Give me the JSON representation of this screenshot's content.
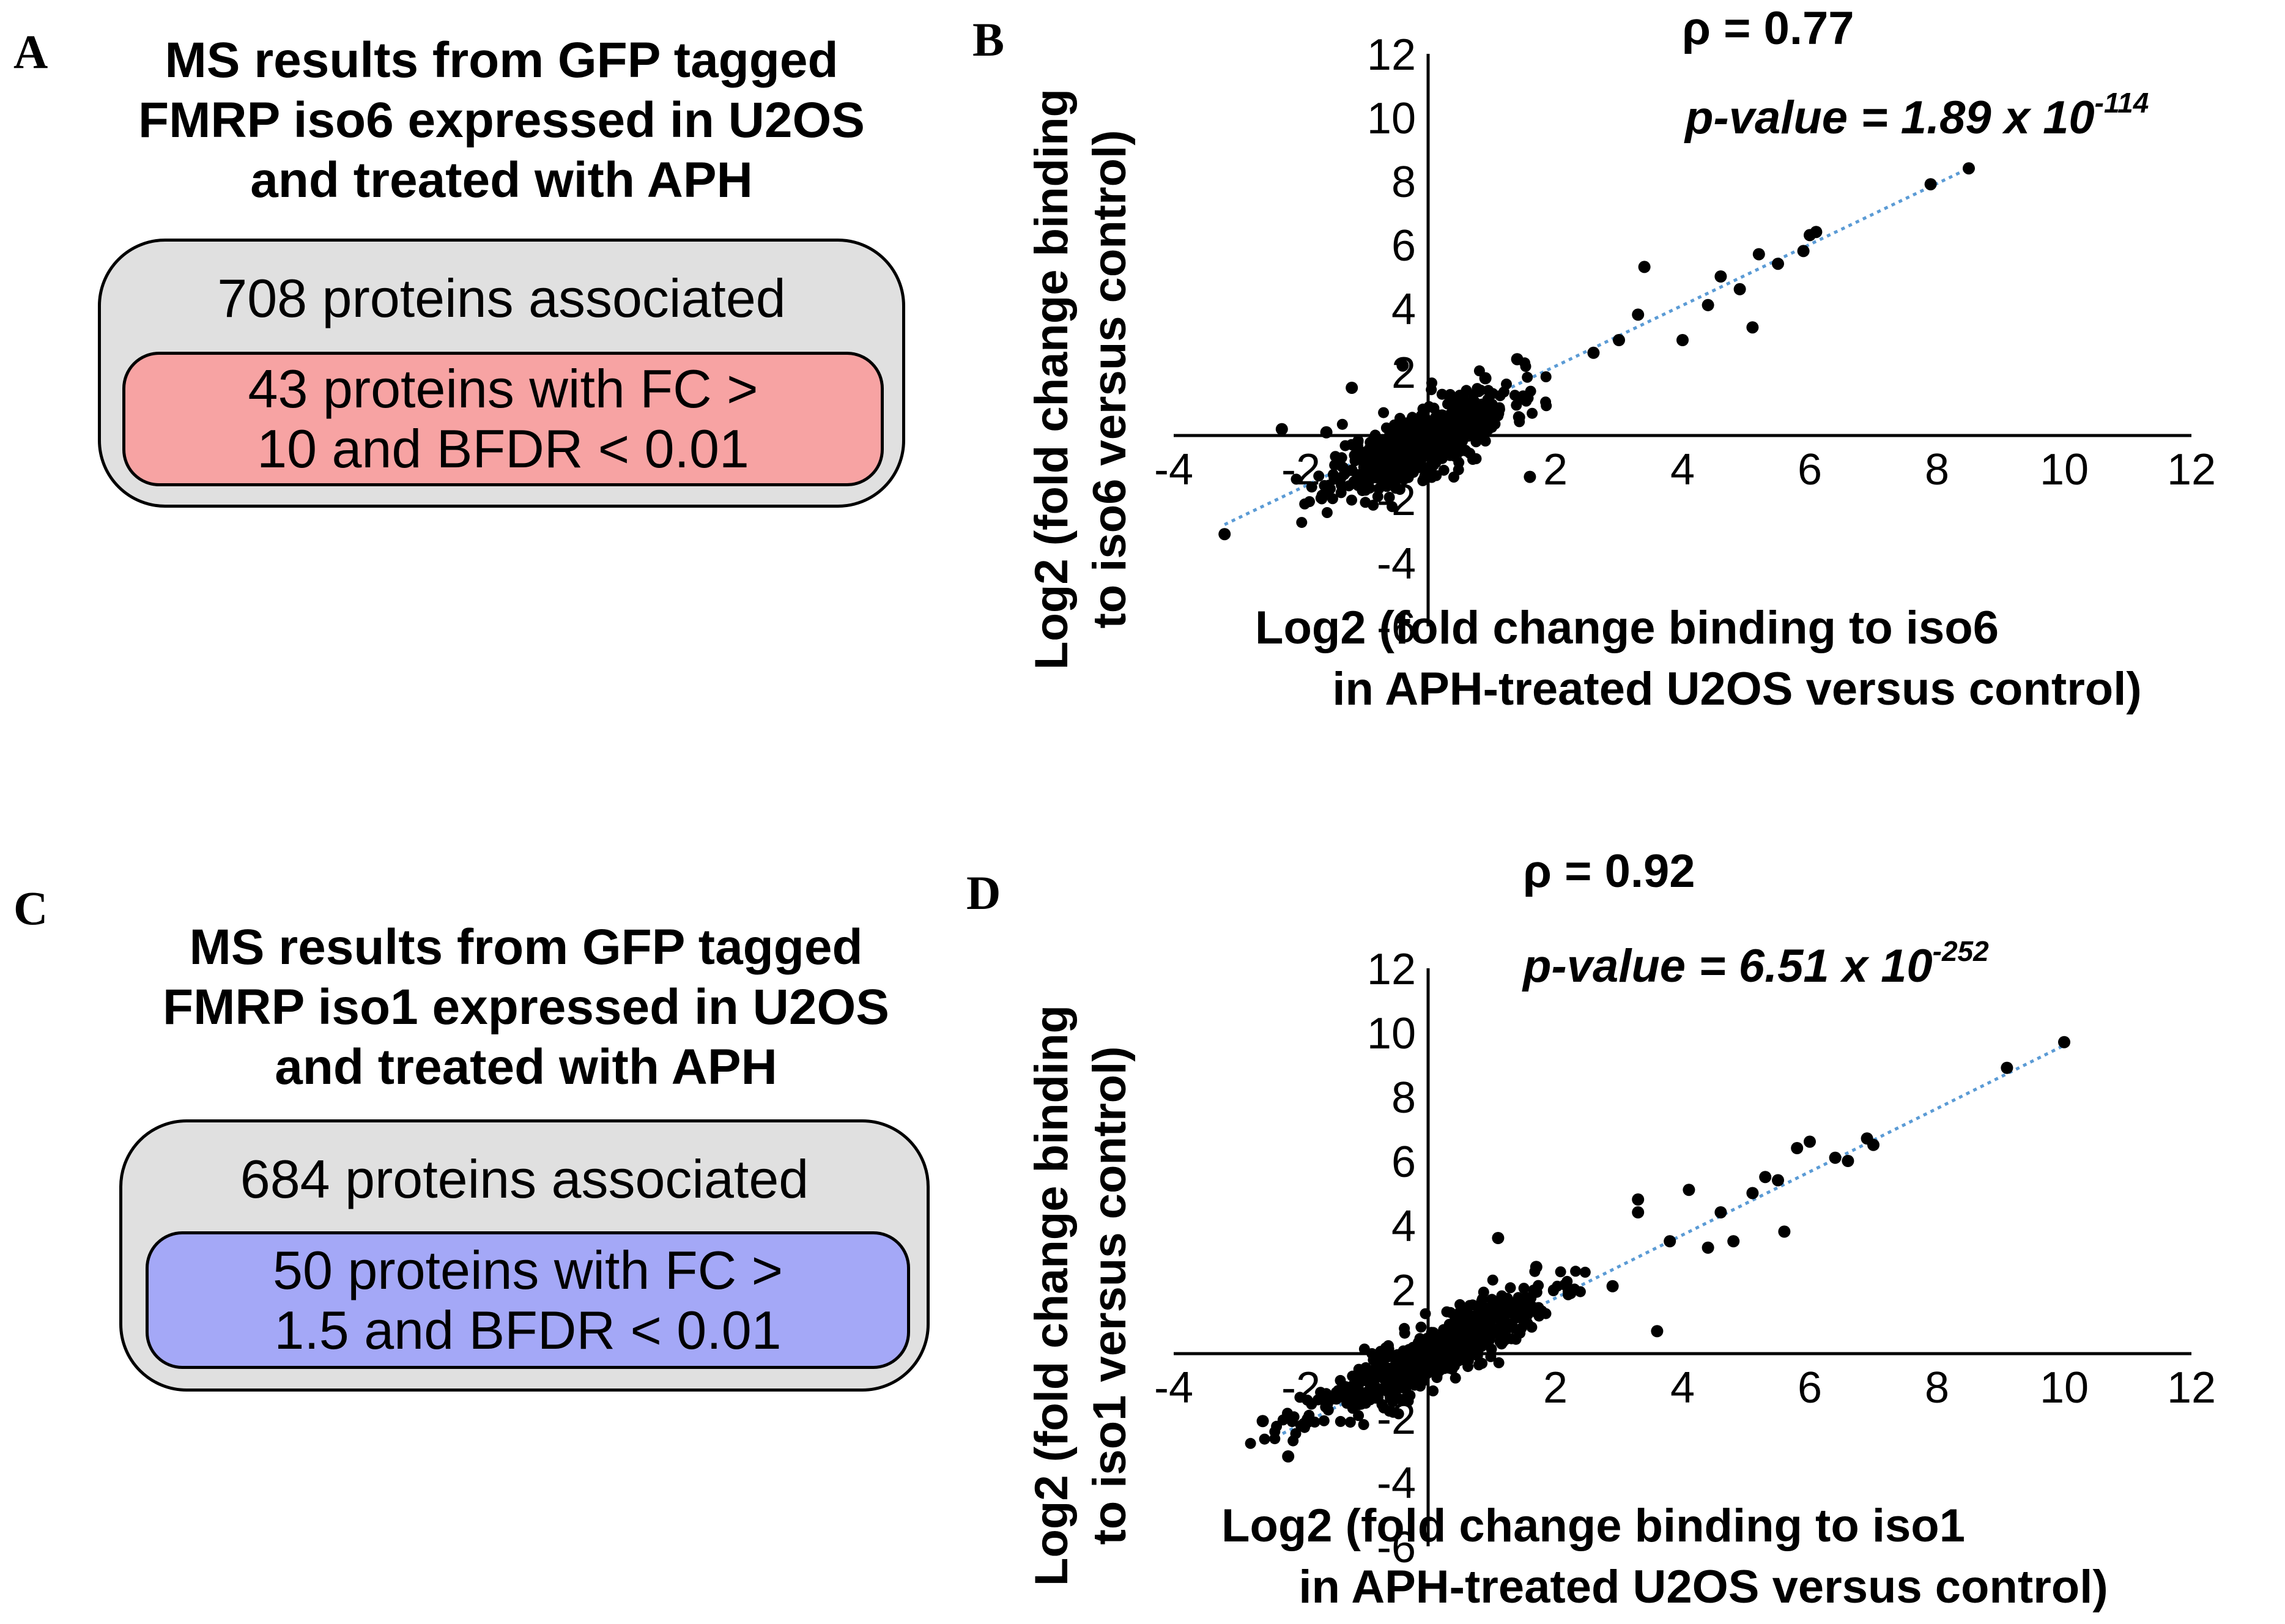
{
  "panels": {
    "a": {
      "letter": "A",
      "title_lines": [
        "MS results from GFP tagged",
        "FMRP iso6 expressed in U2OS",
        "and treated with APH"
      ],
      "outer_label": "708 proteins associated",
      "inner_lines": [
        "43 proteins with FC >",
        "10 and BFDR < 0.01"
      ],
      "inner_color": "#f7a3a3"
    },
    "b": {
      "letter": "B"
    },
    "c": {
      "letter": "C",
      "title_lines": [
        "MS results from GFP tagged",
        "FMRP iso1 expressed in U2OS",
        "and treated with APH"
      ],
      "outer_label": "684 proteins associated",
      "inner_lines": [
        "50 proteins with FC >",
        "1.5 and BFDR < 0.01"
      ],
      "inner_color": "#a4a8f7"
    },
    "d": {
      "letter": "D"
    }
  },
  "chart_data": [
    {
      "panel": "B",
      "type": "scatter",
      "rho_label": "ρ = 0.77",
      "pvalue_prefix": "p-value",
      "pvalue_value": " = 1.89 x 10",
      "pvalue_exp": "-114",
      "xlabel_lines": [
        "Log2 (fold change binding to iso6",
        "in APH-treated U2OS versus control)"
      ],
      "ylabel_lines": [
        "Log2 (fold change binding",
        "to iso6 versus control)"
      ],
      "xlim": [
        -4,
        12
      ],
      "ylim": [
        -6,
        12
      ],
      "x_ticks": [
        "-4",
        "-2",
        "2",
        "4",
        "6",
        "8",
        "10",
        "12"
      ],
      "y_ticks": [
        "12",
        "10",
        "8",
        "6",
        "4",
        "2",
        "-2",
        "-4",
        "-6"
      ],
      "trendline": {
        "x": [
          -3.2,
          8.5
        ],
        "y": [
          -2.8,
          8.4
        ],
        "color": "#5b9bd5"
      },
      "highlight_points": [
        {
          "x": -3.2,
          "y": -3.1
        },
        {
          "x": -2.3,
          "y": 0.2
        },
        {
          "x": -1.6,
          "y": 0.1
        },
        {
          "x": -1.2,
          "y": 1.5
        },
        {
          "x": -0.4,
          "y": 2.2
        },
        {
          "x": 0.9,
          "y": 1.8
        },
        {
          "x": 1.4,
          "y": 2.4
        },
        {
          "x": 1.6,
          "y": -1.3
        },
        {
          "x": 2.6,
          "y": 2.6
        },
        {
          "x": 3.0,
          "y": 3.0
        },
        {
          "x": 3.3,
          "y": 3.8
        },
        {
          "x": 3.4,
          "y": 5.3
        },
        {
          "x": 4.0,
          "y": 3.0
        },
        {
          "x": 4.4,
          "y": 4.1
        },
        {
          "x": 4.6,
          "y": 5.0
        },
        {
          "x": 4.9,
          "y": 4.6
        },
        {
          "x": 5.1,
          "y": 3.4
        },
        {
          "x": 5.2,
          "y": 5.7
        },
        {
          "x": 5.5,
          "y": 5.4
        },
        {
          "x": 5.9,
          "y": 5.8
        },
        {
          "x": 6.0,
          "y": 6.3
        },
        {
          "x": 6.1,
          "y": 6.4
        },
        {
          "x": 7.9,
          "y": 7.9
        },
        {
          "x": 8.5,
          "y": 8.4
        }
      ],
      "cloud": {
        "n": 560,
        "seed": 11,
        "x_mu": -0.1,
        "x_sd": 0.7,
        "noise_sd": 0.55,
        "slope": 0.85,
        "intercept": -0.1,
        "x_min": -3.0,
        "x_max": 3.5
      }
    },
    {
      "panel": "D",
      "type": "scatter",
      "rho_label": "ρ = 0.92",
      "pvalue_prefix": "p-value",
      "pvalue_value": " = 6.51 x 10",
      "pvalue_exp": "-252",
      "xlabel_lines": [
        "Log2 (fold change binding to iso1",
        "in APH-treated U2OS versus control)"
      ],
      "ylabel_lines": [
        "Log2 (fold change binding",
        "to iso1 versus control)"
      ],
      "xlim": [
        -4,
        12
      ],
      "ylim": [
        -6,
        12
      ],
      "x_ticks": [
        "-4",
        "-2",
        "2",
        "4",
        "6",
        "8",
        "10",
        "12"
      ],
      "y_ticks": [
        "12",
        "10",
        "8",
        "6",
        "4",
        "2",
        "-2",
        "-4",
        "-6"
      ],
      "trendline": {
        "x": [
          -2.4,
          10.0
        ],
        "y": [
          -2.6,
          9.6
        ],
        "color": "#5b9bd5"
      },
      "highlight_points": [
        {
          "x": -2.6,
          "y": -2.1
        },
        {
          "x": -2.2,
          "y": -3.2
        },
        {
          "x": 1.1,
          "y": 3.6
        },
        {
          "x": 1.7,
          "y": 2.7
        },
        {
          "x": 2.9,
          "y": 2.1
        },
        {
          "x": 3.3,
          "y": 4.8
        },
        {
          "x": 3.3,
          "y": 4.4
        },
        {
          "x": 3.6,
          "y": 0.7
        },
        {
          "x": 3.8,
          "y": 3.5
        },
        {
          "x": 4.1,
          "y": 5.1
        },
        {
          "x": 4.4,
          "y": 3.3
        },
        {
          "x": 4.6,
          "y": 4.4
        },
        {
          "x": 4.8,
          "y": 3.5
        },
        {
          "x": 5.1,
          "y": 5.0
        },
        {
          "x": 5.3,
          "y": 5.5
        },
        {
          "x": 5.5,
          "y": 5.4
        },
        {
          "x": 5.6,
          "y": 3.8
        },
        {
          "x": 5.8,
          "y": 6.4
        },
        {
          "x": 6.0,
          "y": 6.6
        },
        {
          "x": 6.4,
          "y": 6.1
        },
        {
          "x": 6.6,
          "y": 6.0
        },
        {
          "x": 6.9,
          "y": 6.7
        },
        {
          "x": 7.0,
          "y": 6.5
        },
        {
          "x": 9.1,
          "y": 8.9
        },
        {
          "x": 10.0,
          "y": 9.7
        }
      ],
      "cloud": {
        "n": 620,
        "seed": 23,
        "x_mu": 0.0,
        "x_sd": 0.95,
        "noise_sd": 0.45,
        "slope": 0.95,
        "intercept": -0.1,
        "x_min": -2.8,
        "x_max": 6.5
      }
    }
  ]
}
